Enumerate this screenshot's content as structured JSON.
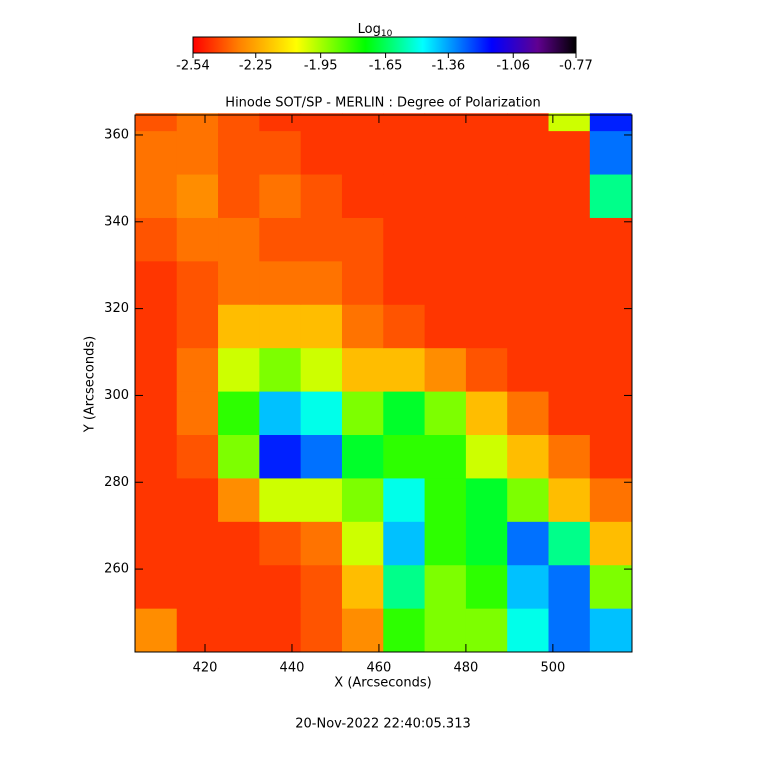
{
  "chart_data": {
    "type": "heatmap",
    "title": "Hinode SOT/SP - MERLIN : Degree of Polarization",
    "xlabel": "X (Arcseconds)",
    "ylabel": "Y (Arcseconds)",
    "footer": "20-Nov-2022 22:40:05.313",
    "colorbar_label": "Log",
    "colorbar_label_sub": "10",
    "xlim": [
      403.9,
      518.2
    ],
    "ylim": [
      240.9,
      364.6
    ],
    "xticks": [
      420,
      440,
      460,
      480,
      500
    ],
    "yticks": [
      260,
      280,
      300,
      320,
      340,
      360
    ],
    "zlim": [
      -2.54,
      -0.77
    ],
    "zticks": [
      -2.54,
      -2.25,
      -1.95,
      -1.65,
      -1.36,
      -1.06,
      -0.77
    ],
    "colorscale": [
      [
        0,
        "#ff0000"
      ],
      [
        0.12,
        "#ff8000"
      ],
      [
        0.27,
        "#ffff00"
      ],
      [
        0.45,
        "#00ff00"
      ],
      [
        0.6,
        "#00ffff"
      ],
      [
        0.78,
        "#0000ff"
      ],
      [
        0.9,
        "#600090"
      ],
      [
        1,
        "#000000"
      ]
    ],
    "xbins": [
      404,
      413.5,
      423,
      432.5,
      442,
      451.5,
      461,
      470.5,
      480,
      489.5,
      499,
      508.5,
      518
    ],
    "ybins": [
      241,
      251,
      261,
      271,
      281,
      291,
      301,
      311,
      321,
      331,
      341,
      351,
      361,
      365
    ],
    "z": [
      [
        -2.3,
        -2.45,
        -2.45,
        -2.45,
        -2.4,
        -2.3,
        -1.8,
        -1.9,
        -1.9,
        -1.5,
        -1.3,
        -1.4
      ],
      [
        -2.45,
        -2.45,
        -2.45,
        -2.45,
        -2.4,
        -2.2,
        -1.6,
        -1.9,
        -1.8,
        -1.4,
        -1.3,
        -1.9
      ],
      [
        -2.45,
        -2.45,
        -2.45,
        -2.4,
        -2.35,
        -2.0,
        -1.4,
        -1.8,
        -1.7,
        -1.3,
        -1.6,
        -2.2
      ],
      [
        -2.45,
        -2.45,
        -2.3,
        -2.0,
        -2.0,
        -1.9,
        -1.5,
        -1.8,
        -1.7,
        -1.9,
        -2.2,
        -2.35
      ],
      [
        -2.45,
        -2.4,
        -1.9,
        -1.2,
        -1.3,
        -1.7,
        -1.8,
        -1.8,
        -2.0,
        -2.2,
        -2.35,
        -2.45
      ],
      [
        -2.45,
        -2.35,
        -1.8,
        -1.4,
        -1.5,
        -1.9,
        -1.7,
        -1.9,
        -2.2,
        -2.35,
        -2.45,
        -2.45
      ],
      [
        -2.45,
        -2.35,
        -2.0,
        -1.9,
        -2.0,
        -2.2,
        -2.2,
        -2.3,
        -2.4,
        -2.45,
        -2.45,
        -2.45
      ],
      [
        -2.45,
        -2.4,
        -2.2,
        -2.2,
        -2.2,
        -2.35,
        -2.4,
        -2.45,
        -2.45,
        -2.45,
        -2.45,
        -2.45
      ],
      [
        -2.45,
        -2.4,
        -2.35,
        -2.35,
        -2.35,
        -2.4,
        -2.45,
        -2.45,
        -2.45,
        -2.45,
        -2.45,
        -2.45
      ],
      [
        -2.4,
        -2.35,
        -2.35,
        -2.4,
        -2.4,
        -2.4,
        -2.45,
        -2.45,
        -2.45,
        -2.45,
        -2.45,
        -2.45
      ],
      [
        -2.35,
        -2.3,
        -2.4,
        -2.35,
        -2.4,
        -2.45,
        -2.45,
        -2.45,
        -2.45,
        -2.45,
        -2.45,
        -1.6
      ],
      [
        -2.35,
        -2.35,
        -2.4,
        -2.4,
        -2.45,
        -2.45,
        -2.45,
        -2.45,
        -2.45,
        -2.45,
        -2.45,
        -1.3
      ],
      [
        -2.4,
        -2.35,
        -2.4,
        -2.45,
        -2.45,
        -2.45,
        -2.45,
        -2.45,
        -2.45,
        -2.45,
        -2.0,
        -1.2
      ]
    ]
  }
}
